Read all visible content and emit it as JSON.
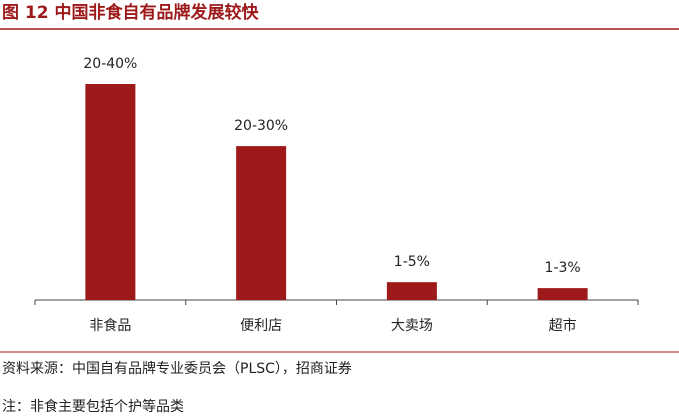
{
  "chart_data": {
    "type": "bar",
    "title": "图 12 中国非食自有品牌发展较快",
    "categories": [
      "非食品",
      "便利店",
      "大卖场",
      "超市"
    ],
    "values": [
      40,
      28.5,
      3.3,
      2.2
    ],
    "value_labels": [
      "20-40%",
      "20-30%",
      "1-5%",
      "1-3%"
    ],
    "color": "#9e1a1a",
    "ylim": [
      0,
      40
    ],
    "source": "资料来源：中国自有品牌专业委员会（PLSC），招商证券",
    "note": "注：非食主要包括个护等品类"
  }
}
